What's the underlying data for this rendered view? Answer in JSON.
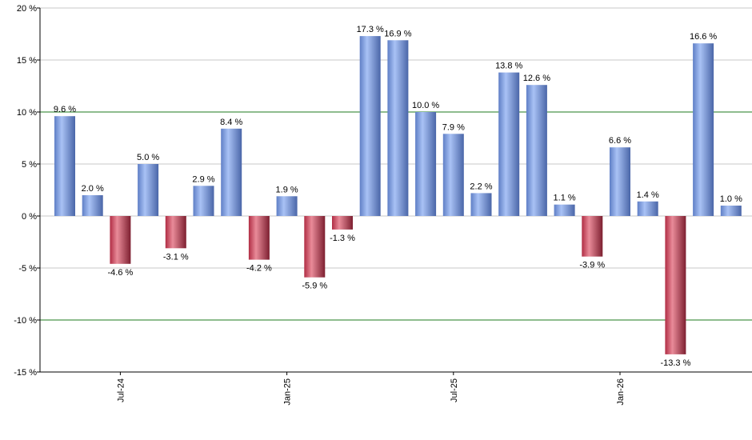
{
  "chart_data": {
    "type": "bar",
    "title": "",
    "xlabel": "",
    "ylabel": "",
    "ylim": [
      -15,
      20
    ],
    "yticks": [
      20,
      15,
      10,
      5,
      0,
      -5,
      -10,
      -15
    ],
    "ytick_labels": [
      "20 %",
      "15 %",
      "10 %",
      "5 %",
      "0 %",
      "-5 %",
      "-10 %",
      "-15 %"
    ],
    "reference_lines": [
      10,
      -10
    ],
    "xtick_labels": [
      {
        "label": "Jul-24",
        "bar_index": 2
      },
      {
        "label": "Jan-25",
        "bar_index": 8
      },
      {
        "label": "Jul-25",
        "bar_index": 14
      },
      {
        "label": "Jan-26",
        "bar_index": 20
      }
    ],
    "values": [
      9.6,
      2.0,
      -4.6,
      5.0,
      -3.1,
      2.9,
      8.4,
      -4.2,
      1.9,
      -5.9,
      -1.3,
      17.3,
      16.9,
      10.0,
      7.9,
      2.2,
      13.8,
      12.6,
      1.1,
      -3.9,
      6.6,
      1.4,
      -13.3,
      16.6,
      1.0
    ],
    "value_labels": [
      "9.6 %",
      "2.0 %",
      "-4.6 %",
      "5.0 %",
      "-3.1 %",
      "2.9 %",
      "8.4 %",
      "-4.2 %",
      "1.9 %",
      "-5.9 %",
      "-1.3 %",
      "17.3 %",
      "16.9 %",
      "10.0 %",
      "7.9 %",
      "2.2 %",
      "13.8 %",
      "12.6 %",
      "1.1 %",
      "-3.9 %",
      "6.6 %",
      "1.4 %",
      "-13.3 %",
      "16.6 %",
      "1.0 %"
    ],
    "grid": true,
    "colors": {
      "positive": "#6f8fd6",
      "positive_light": "#a9c2f5",
      "positive_dark": "#4a66a8",
      "negative": "#c23c52",
      "negative_light": "#e98b99",
      "negative_dark": "#7d1f30",
      "gridline": "#c8c8c8",
      "reference_line": "#1e7a1e",
      "axis": "#000000"
    }
  }
}
